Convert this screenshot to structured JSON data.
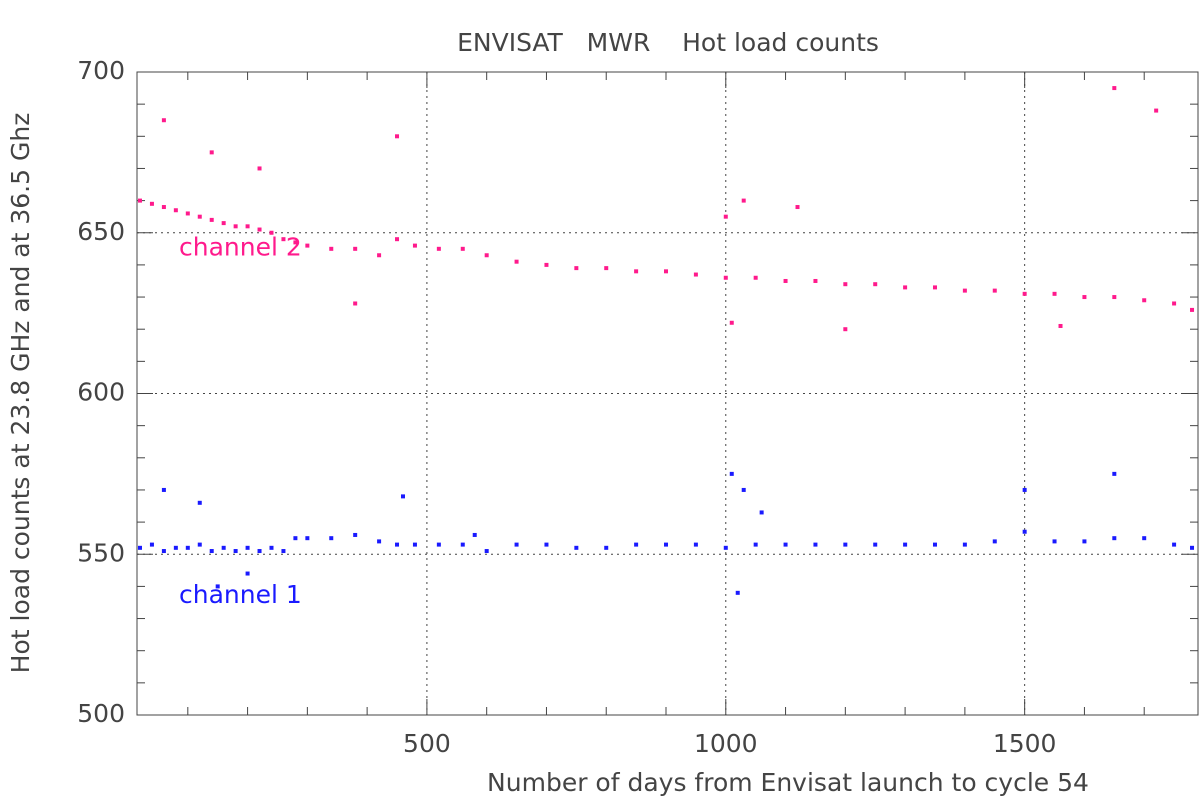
{
  "chart_data": {
    "type": "scatter",
    "title": "ENVISAT   MWR    Hot load counts",
    "x_label": "Number of days from Envisat launch to cycle 54",
    "y_label": "Hot load counts at 23.8 GHz and at 36.5 Ghz",
    "xlim": [
      15,
      1790
    ],
    "ylim": [
      500,
      700
    ],
    "xticks": [
      500,
      1000,
      1500
    ],
    "yticks": [
      500,
      550,
      600,
      650,
      700
    ],
    "xminorticks": [
      100,
      200,
      300,
      400,
      600,
      700,
      800,
      900,
      1100,
      1200,
      1300,
      1400,
      1600,
      1700
    ],
    "yminorticks": [
      510,
      520,
      530,
      540,
      560,
      570,
      580,
      590,
      610,
      620,
      630,
      640,
      660,
      670,
      680,
      690
    ],
    "grid": true,
    "series": [
      {
        "name": "channel 2",
        "color": "#ff1a8c",
        "x": [
          20,
          40,
          60,
          80,
          100,
          120,
          140,
          160,
          180,
          200,
          220,
          240,
          260,
          280,
          300,
          340,
          380,
          420,
          450,
          480,
          520,
          560,
          600,
          650,
          700,
          750,
          800,
          850,
          900,
          950,
          1000,
          1050,
          1100,
          1150,
          1200,
          1250,
          1300,
          1350,
          1400,
          1450,
          1500,
          1550,
          1600,
          1650,
          1700,
          1750,
          1780,
          60,
          140,
          220,
          450,
          1000,
          1030,
          1120,
          1650,
          1720,
          1010,
          1200,
          1560,
          380
        ],
        "values": [
          660,
          659,
          658,
          657,
          656,
          655,
          654,
          653,
          652,
          652,
          651,
          650,
          648,
          647,
          646,
          645,
          645,
          643,
          648,
          646,
          645,
          645,
          643,
          641,
          640,
          639,
          639,
          638,
          638,
          637,
          636,
          636,
          635,
          635,
          634,
          634,
          633,
          633,
          632,
          632,
          631,
          631,
          630,
          630,
          629,
          628,
          626,
          685,
          675,
          670,
          680,
          655,
          660,
          658,
          695,
          688,
          622,
          620,
          621,
          628
        ]
      },
      {
        "name": "channel 1",
        "color": "#1a1aff",
        "x": [
          20,
          40,
          60,
          80,
          100,
          120,
          140,
          160,
          180,
          200,
          220,
          240,
          260,
          280,
          300,
          340,
          380,
          420,
          450,
          480,
          520,
          560,
          580,
          600,
          650,
          700,
          750,
          800,
          850,
          900,
          950,
          1000,
          1050,
          1100,
          1150,
          1200,
          1250,
          1300,
          1350,
          1400,
          1450,
          1500,
          1550,
          1600,
          1650,
          1700,
          1750,
          1780,
          60,
          120,
          200,
          1010,
          1030,
          1060,
          1650,
          1500,
          460,
          1020,
          150
        ],
        "values": [
          552,
          553,
          551,
          552,
          552,
          553,
          551,
          552,
          551,
          552,
          551,
          552,
          551,
          555,
          555,
          555,
          556,
          554,
          553,
          553,
          553,
          553,
          556,
          551,
          553,
          553,
          552,
          552,
          553,
          553,
          553,
          552,
          553,
          553,
          553,
          553,
          553,
          553,
          553,
          553,
          554,
          557,
          554,
          554,
          555,
          555,
          553,
          552,
          570,
          566,
          544,
          575,
          570,
          563,
          575,
          570,
          568,
          538,
          540
        ]
      }
    ]
  }
}
